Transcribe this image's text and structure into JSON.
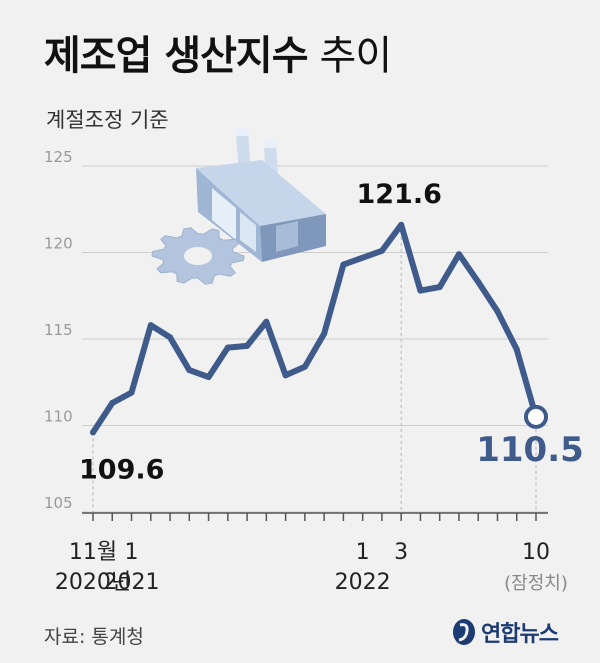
{
  "title_bold": "제조업 생산지수",
  "title_light": "추이",
  "subtitle": "계절조정 기준",
  "source": "자료: 통계청",
  "logo_text": "연합뉴스",
  "colors": {
    "line": "#3e5b8c",
    "accent": "#3e5b8c",
    "grid": "#cdcdcd",
    "text": "#111111",
    "background": "#f1f1f1"
  },
  "icons": [
    "factory-icon",
    "gear-icon",
    "yonhap-logo-icon"
  ],
  "chart_data": {
    "type": "line",
    "ylim": [
      105,
      125
    ],
    "yticks": [
      "105",
      "110",
      "115",
      "120",
      "125"
    ],
    "grid": true,
    "series": [
      {
        "values": [
          109.6,
          111.3,
          111.9,
          115.8,
          115.1,
          113.2,
          112.8,
          114.5,
          114.6,
          116.0,
          112.9,
          113.4,
          115.3,
          119.3,
          119.7,
          120.1,
          121.6,
          117.8,
          118.0,
          119.9,
          118.3,
          116.6,
          114.4,
          110.5
        ]
      }
    ],
    "x_tick_labels": [
      {
        "index": 0,
        "line1": "11월",
        "line2": "2020년"
      },
      {
        "index": 2,
        "line1": "1",
        "line2": "2021"
      },
      {
        "index": 14,
        "line1": "1",
        "line2": "2022"
      },
      {
        "index": 16,
        "line1": "3",
        "line2": ""
      },
      {
        "index": 23,
        "line1": "10",
        "line2": "(잠정치)"
      }
    ],
    "annotations": [
      {
        "index": 0,
        "label": "109.6"
      },
      {
        "index": 16,
        "label": "121.6"
      },
      {
        "index": 23,
        "label": "110.5"
      }
    ]
  }
}
